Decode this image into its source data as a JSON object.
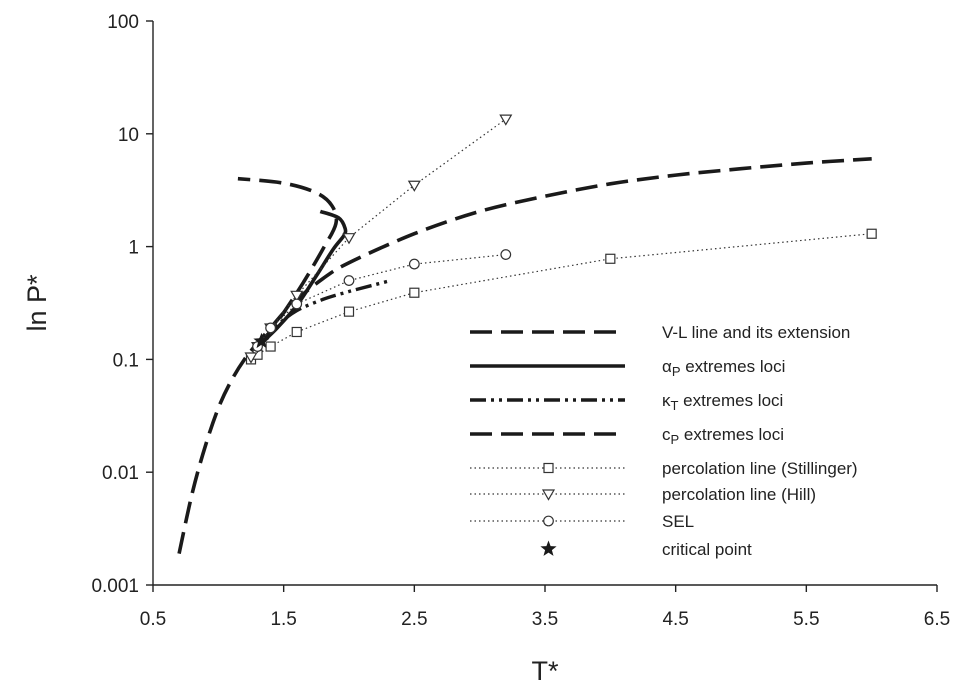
{
  "chart_data": {
    "type": "scatter",
    "title": "",
    "xlabel": "T*",
    "ylabel": "ln P*",
    "xlim": [
      0.5,
      6.5
    ],
    "ylim": [
      0.001,
      100
    ],
    "y_scale": "log",
    "grid": false,
    "legend_position": "bottom-right",
    "x_ticks": [
      0.5,
      1.5,
      2.5,
      3.5,
      4.5,
      5.5,
      6.5
    ],
    "x_tick_labels": [
      "0.5",
      "1.5",
      "2.5",
      "3.5",
      "4.5",
      "5.5",
      "6.5"
    ],
    "y_ticks": [
      0.001,
      0.01,
      0.1,
      1,
      10,
      100
    ],
    "y_tick_labels": [
      "0.001",
      "0.01",
      "0.1",
      "1",
      "10",
      "100"
    ],
    "series": [
      {
        "name": "V-L line and its extension",
        "style": "dashed-long",
        "color": "#1a1a1a",
        "points": [
          [
            0.7,
            0.0019
          ],
          [
            0.8,
            0.0065
          ],
          [
            0.9,
            0.017
          ],
          [
            1.0,
            0.037
          ],
          [
            1.1,
            0.065
          ],
          [
            1.2,
            0.1
          ],
          [
            1.3,
            0.14
          ],
          [
            1.4,
            0.19
          ],
          [
            1.5,
            0.26
          ],
          [
            1.6,
            0.34
          ],
          [
            1.8,
            0.52
          ],
          [
            2.0,
            0.72
          ],
          [
            2.5,
            1.3
          ],
          [
            3.0,
            2.05
          ],
          [
            3.5,
            2.8
          ],
          [
            4.0,
            3.6
          ],
          [
            4.5,
            4.3
          ],
          [
            5.0,
            4.9
          ],
          [
            5.5,
            5.5
          ],
          [
            6.0,
            6.0
          ]
        ]
      },
      {
        "name": "αP extremes loci",
        "legend_main": "α",
        "legend_sub": "P",
        "legend_rest": " extremes loci",
        "style": "solid",
        "color": "#1a1a1a",
        "points": [
          [
            1.33,
            0.14
          ],
          [
            1.45,
            0.19
          ],
          [
            1.6,
            0.3
          ],
          [
            1.75,
            0.55
          ],
          [
            1.88,
            0.95
          ],
          [
            1.96,
            1.25
          ],
          [
            1.97,
            1.45
          ],
          [
            1.92,
            1.8
          ],
          [
            1.78,
            2.05
          ]
        ]
      },
      {
        "name": "κT extremes loci",
        "legend_main": "κ",
        "legend_sub": "T",
        "legend_rest": " extremes loci",
        "style": "dash-dot-dot",
        "color": "#1a1a1a",
        "points": [
          [
            1.33,
            0.14
          ],
          [
            1.45,
            0.2
          ],
          [
            1.6,
            0.27
          ],
          [
            1.8,
            0.34
          ],
          [
            2.0,
            0.4
          ],
          [
            2.2,
            0.46
          ],
          [
            2.32,
            0.5
          ]
        ]
      },
      {
        "name": "cP extremes loci",
        "legend_main": "c",
        "legend_sub": "P",
        "legend_rest": " extremes loci",
        "style": "dashed-long",
        "color": "#1a1a1a",
        "points": [
          [
            1.33,
            0.14
          ],
          [
            1.5,
            0.26
          ],
          [
            1.65,
            0.48
          ],
          [
            1.8,
            0.95
          ],
          [
            1.9,
            1.6
          ],
          [
            1.87,
            2.3
          ],
          [
            1.75,
            3.0
          ],
          [
            1.5,
            3.65
          ],
          [
            1.15,
            4.0
          ]
        ]
      },
      {
        "name": "percolation line (Stillinger)",
        "style": "dotted",
        "marker": "square",
        "color": "#333333",
        "points": [
          [
            1.25,
            0.1
          ],
          [
            1.3,
            0.11
          ],
          [
            1.4,
            0.13
          ],
          [
            1.6,
            0.175
          ],
          [
            2.0,
            0.265
          ],
          [
            2.5,
            0.39
          ],
          [
            4.0,
            0.78
          ],
          [
            6.0,
            1.3
          ]
        ]
      },
      {
        "name": "percolation line (Hill)",
        "style": "dotted",
        "marker": "triangle-down",
        "color": "#333333",
        "points": [
          [
            1.25,
            0.105
          ],
          [
            1.3,
            0.13
          ],
          [
            1.4,
            0.19
          ],
          [
            1.6,
            0.37
          ],
          [
            2.0,
            1.2
          ],
          [
            2.5,
            3.5
          ],
          [
            3.2,
            13.5
          ]
        ]
      },
      {
        "name": "SEL",
        "style": "dotted",
        "marker": "circle",
        "color": "#333333",
        "points": [
          [
            1.3,
            0.13
          ],
          [
            1.4,
            0.19
          ],
          [
            1.6,
            0.31
          ],
          [
            2.0,
            0.5
          ],
          [
            2.5,
            0.7
          ],
          [
            3.2,
            0.85
          ]
        ]
      },
      {
        "name": "critical point",
        "style": "none",
        "marker": "star",
        "color": "#1a1a1a",
        "points": [
          [
            1.33,
            0.145
          ]
        ]
      }
    ]
  }
}
